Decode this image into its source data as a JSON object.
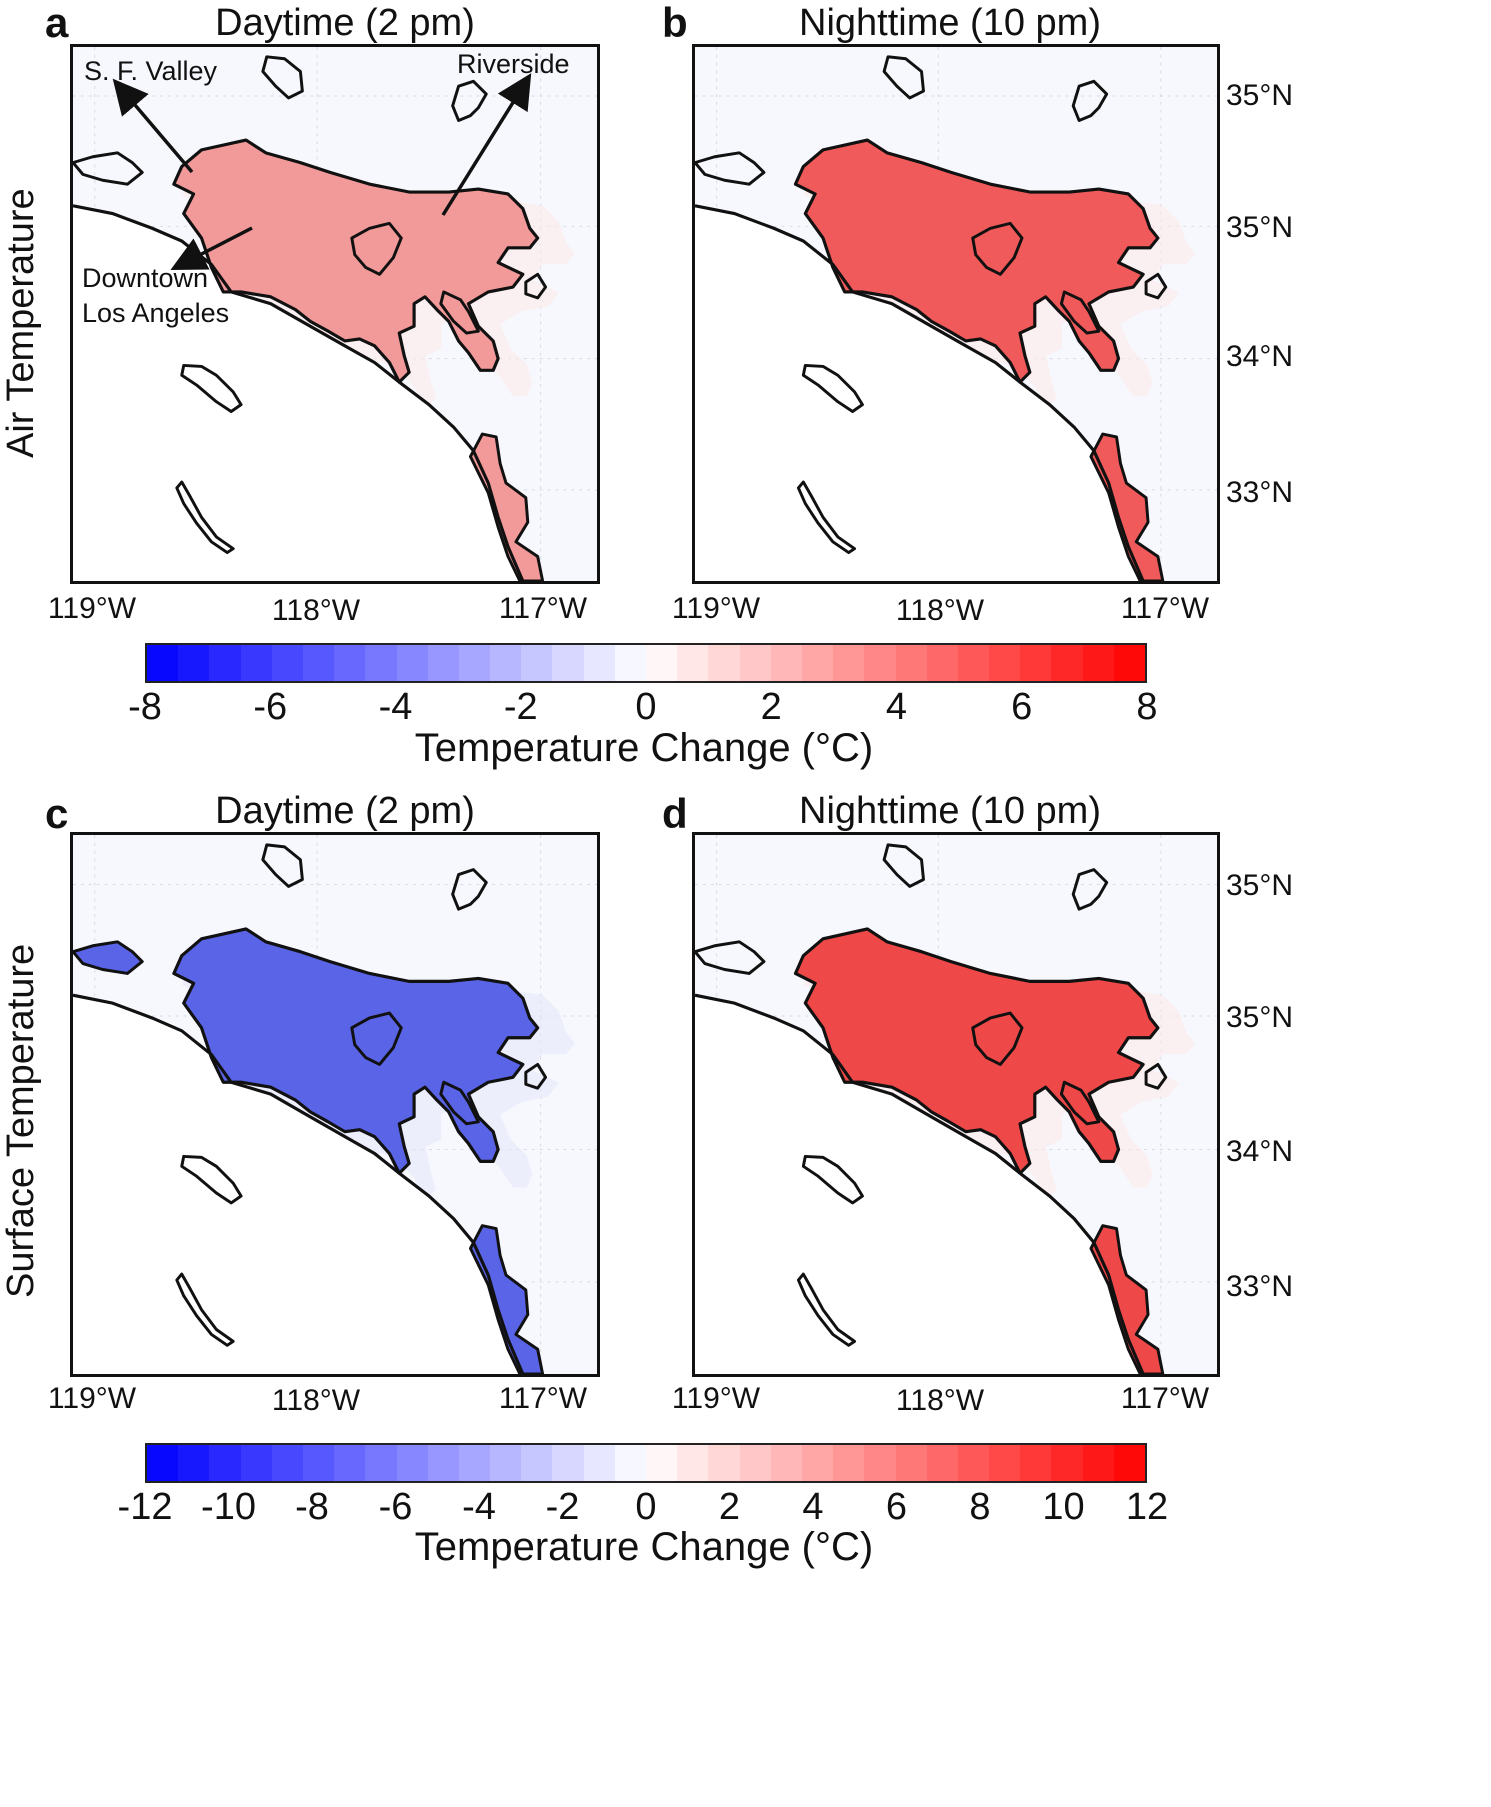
{
  "rows": [
    {
      "label": "Air Temperature"
    },
    {
      "label": "Surface Temperature"
    }
  ],
  "panels": [
    {
      "letter": "a",
      "title": "Daytime (2 pm)"
    },
    {
      "letter": "b",
      "title": "Nighttime (10 pm)"
    },
    {
      "letter": "c",
      "title": "Daytime (2 pm)"
    },
    {
      "letter": "d",
      "title": "Nighttime (10 pm)"
    }
  ],
  "axes": {
    "lon_ticks": [
      "119°W",
      "118°W",
      "117°W"
    ],
    "lat_ticks": [
      "35°N",
      "35°N",
      "34°N",
      "33°N"
    ]
  },
  "annotations": {
    "sf_valley": "S. F. Valley",
    "riverside": "Riverside",
    "downtown_line1": "Downtown",
    "downtown_line2": "Los Angeles"
  },
  "colorbars": [
    {
      "title": "Temperature Change (°C)",
      "min": -8,
      "max": 8,
      "ticks": [
        "-8",
        "-6",
        "-4",
        "-2",
        "0",
        "2",
        "4",
        "6",
        "8"
      ],
      "colors": {
        "low": "#0000ff",
        "mid": "#ffffff",
        "high": "#ff0000"
      }
    },
    {
      "title": "Temperature Change (°C)",
      "min": -12,
      "max": 12,
      "ticks": [
        "-12",
        "-10",
        "-8",
        "-6",
        "-4",
        "-2",
        "0",
        "2",
        "4",
        "6",
        "8",
        "10",
        "12"
      ],
      "colors": {
        "low": "#0000ff",
        "mid": "#ffffff",
        "high": "#ff0000"
      }
    }
  ],
  "fills": {
    "a": "#f29a9a",
    "b": "#f05a5a",
    "c": "#5a64e6",
    "d": "#ef4848"
  }
}
